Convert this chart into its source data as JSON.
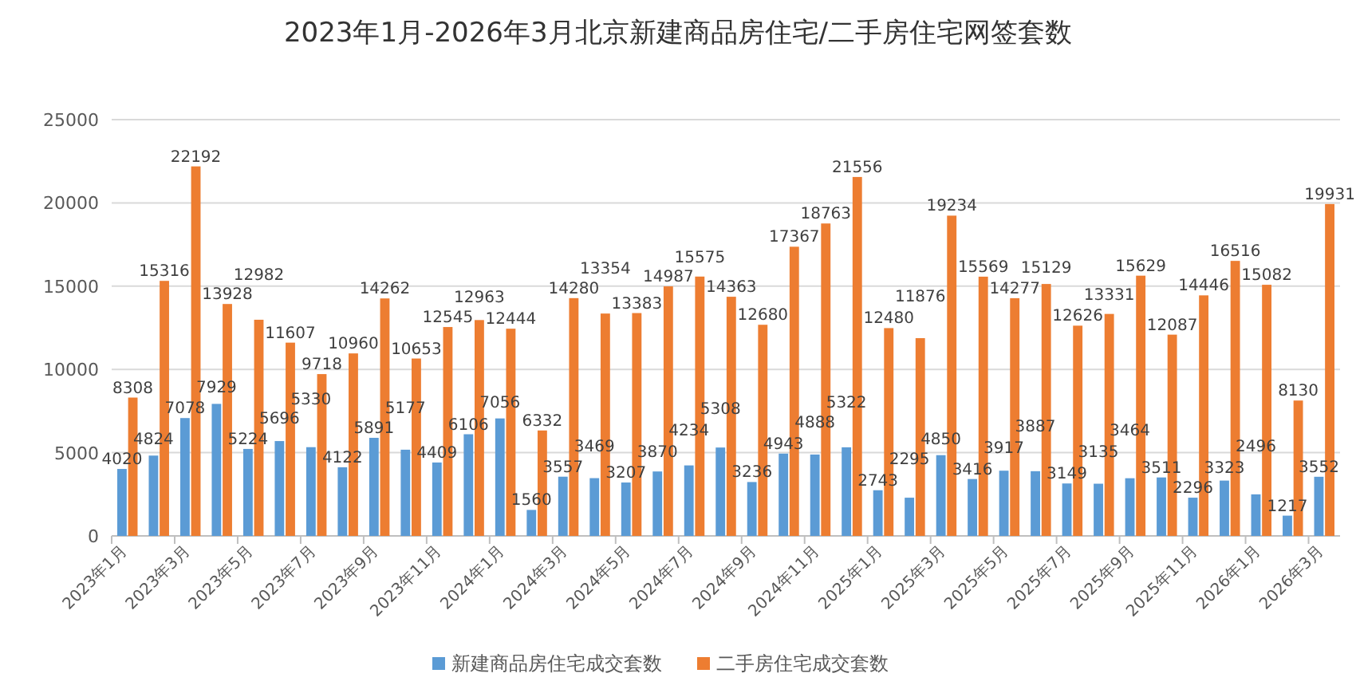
{
  "chart_data": {
    "type": "bar",
    "title": "2023年1月-2026年3月北京新建商品房住宅/二手房住宅网签套数",
    "categories": [
      "2023年1月",
      null,
      "2023年3月",
      null,
      "2023年5月",
      null,
      "2023年7月",
      null,
      "2023年9月",
      null,
      "2023年11月",
      null,
      "2024年1月",
      null,
      "2024年3月",
      null,
      "2024年5月",
      null,
      "2024年7月",
      null,
      "2024年9月",
      null,
      "2024年11月",
      null,
      "2025年1月",
      null,
      "2025年3月",
      null,
      "2025年5月",
      null,
      "2025年7月",
      null,
      "2025年9月",
      null,
      "2025年11月",
      null,
      "2026年1月",
      null,
      "2026年3月"
    ],
    "series": [
      {
        "name": "新建商品房住宅成交套数",
        "color": "#5b9bd5",
        "values": [
          4020,
          4824,
          7078,
          7929,
          5224,
          5696,
          5330,
          4122,
          5891,
          5177,
          4409,
          6106,
          7056,
          1560,
          3557,
          3469,
          3207,
          3870,
          4234,
          5308,
          3236,
          4943,
          4888,
          5322,
          2743,
          2295,
          4850,
          3416,
          3917,
          3887,
          3149,
          3135,
          3464,
          3511,
          2296,
          3323,
          2496,
          1217,
          3552
        ]
      },
      {
        "name": "二手房住宅成交套数",
        "color": "#ed7d31",
        "values": [
          8308,
          15316,
          22192,
          13928,
          12982,
          11607,
          9718,
          10960,
          14262,
          10653,
          12545,
          12963,
          12444,
          6332,
          14280,
          13354,
          13383,
          14987,
          15575,
          14363,
          12680,
          17367,
          18763,
          21556,
          12480,
          11876,
          19234,
          15569,
          14277,
          15129,
          12626,
          13331,
          15629,
          12087,
          14446,
          16516,
          15082,
          8130,
          19931
        ]
      }
    ],
    "ylim": [
      0,
      25000
    ],
    "yticks": [
      0,
      5000,
      10000,
      15000,
      20000,
      25000
    ],
    "grid": "y",
    "legend": "bottom",
    "data_labels": true
  }
}
